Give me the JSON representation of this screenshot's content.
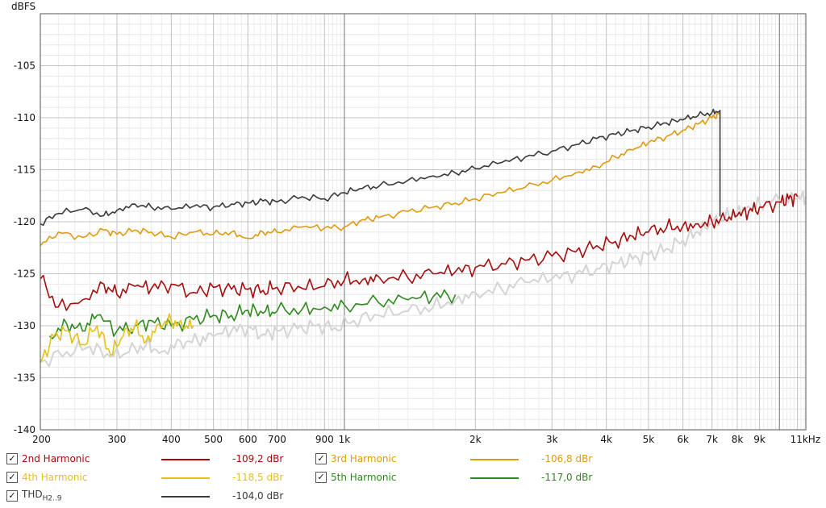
{
  "chart_data": {
    "type": "line",
    "ylabel": "dBFS",
    "x_unit": "kHz",
    "x_scale": "log",
    "xlim": [
      200,
      11500
    ],
    "ylim": [
      -140,
      -100
    ],
    "y_ticks": [
      -105,
      -110,
      -115,
      -120,
      -125,
      -130,
      -135,
      -140
    ],
    "x_ticks": [
      {
        "value": 200,
        "label": "200"
      },
      {
        "value": 300,
        "label": "300"
      },
      {
        "value": 400,
        "label": "400"
      },
      {
        "value": 500,
        "label": "500"
      },
      {
        "value": 600,
        "label": "600"
      },
      {
        "value": 700,
        "label": "700"
      },
      {
        "value": 900,
        "label": "900"
      },
      {
        "value": 1000,
        "label": "1k"
      },
      {
        "value": 2000,
        "label": "2k"
      },
      {
        "value": 3000,
        "label": "3k"
      },
      {
        "value": 4000,
        "label": "4k"
      },
      {
        "value": 5000,
        "label": "5k"
      },
      {
        "value": 6000,
        "label": "6k"
      },
      {
        "value": 7000,
        "label": "7k"
      },
      {
        "value": 8000,
        "label": "8k"
      },
      {
        "value": 9000,
        "label": "9k"
      },
      {
        "value": 11000,
        "label": "11kHz"
      }
    ],
    "grid": true,
    "legend_position": "bottom",
    "series": [
      {
        "key": "thd",
        "name": "THD",
        "name_sub": "H2..9",
        "value": "-104,0 dBr",
        "color": "#3a3a3a",
        "x": [
          200,
          220,
          250,
          280,
          300,
          330,
          360,
          400,
          450,
          500,
          550,
          600,
          650,
          700,
          800,
          900,
          1000,
          1100,
          1200,
          1400,
          1600,
          1800,
          2000,
          2300,
          2600,
          3000,
          3400,
          3800,
          4200,
          4600,
          5000,
          5500,
          6000,
          6500,
          7000,
          7300,
          7300
        ],
        "y": [
          -120.2,
          -119.2,
          -118.8,
          -119.4,
          -118.9,
          -118.3,
          -118.6,
          -118.8,
          -118.5,
          -118.6,
          -118.3,
          -118.2,
          -118.0,
          -118.1,
          -117.6,
          -117.8,
          -117.2,
          -116.8,
          -116.6,
          -116.0,
          -115.6,
          -115.3,
          -114.9,
          -114.3,
          -113.8,
          -113.2,
          -112.6,
          -112.0,
          -111.6,
          -111.2,
          -110.9,
          -110.5,
          -110.2,
          -109.8,
          -109.5,
          -109.3,
          -119.5
        ]
      },
      {
        "key": "h3",
        "name": "3rd Harmonic",
        "value": "-106,8 dBr",
        "color": "#e09a10",
        "x": [
          200,
          220,
          250,
          280,
          300,
          330,
          360,
          400,
          450,
          500,
          550,
          600,
          650,
          700,
          800,
          900,
          1000,
          1100,
          1200,
          1400,
          1600,
          1800,
          2000,
          2300,
          2600,
          3000,
          3400,
          3800,
          4200,
          4600,
          5000,
          5500,
          6000,
          6500,
          7000,
          7300
        ],
        "y": [
          -122.3,
          -121.0,
          -121.5,
          -120.8,
          -121.2,
          -120.8,
          -121.0,
          -121.5,
          -121.0,
          -121.2,
          -121.0,
          -121.6,
          -121.0,
          -121.0,
          -120.5,
          -120.6,
          -120.5,
          -119.8,
          -119.6,
          -119.0,
          -118.6,
          -118.2,
          -117.8,
          -117.2,
          -116.7,
          -116.0,
          -115.3,
          -114.7,
          -113.8,
          -113.1,
          -112.4,
          -111.8,
          -111.2,
          -110.6,
          -110.0,
          -109.6
        ]
      },
      {
        "key": "h2",
        "name": "2nd Harmonic",
        "value": "-109,2 dBr",
        "color": "#a50d0d",
        "x": [
          200,
          220,
          250,
          280,
          300,
          330,
          360,
          400,
          450,
          500,
          550,
          600,
          650,
          700,
          800,
          900,
          1000,
          1100,
          1200,
          1400,
          1600,
          1800,
          2000,
          2300,
          2600,
          3000,
          3400,
          3800,
          4200,
          4600,
          5000,
          5500,
          6000,
          6500,
          7000,
          7500,
          8000,
          8500,
          9000,
          10000,
          10500,
          11000
        ],
        "y": [
          -125.5,
          -128.2,
          -127.5,
          -126.0,
          -127.0,
          -126.2,
          -126.4,
          -126.0,
          -126.8,
          -126.3,
          -126.5,
          -126.5,
          -126.6,
          -126.3,
          -126.4,
          -126.2,
          -125.6,
          -125.6,
          -125.3,
          -125.4,
          -125.0,
          -124.8,
          -124.4,
          -124.0,
          -123.7,
          -123.3,
          -122.9,
          -122.3,
          -121.9,
          -121.4,
          -121.0,
          -120.6,
          -120.4,
          -120.2,
          -120.0,
          -119.8,
          -119.4,
          -119.0,
          -118.6,
          -118.1,
          -117.8,
          -117.6
        ]
      },
      {
        "key": "h4",
        "name": "4th Harmonic",
        "value": "-118,5 dBr",
        "color": "#e4c21e",
        "x": [
          200,
          215,
          230,
          250,
          270,
          290,
          310,
          330,
          350,
          375,
          400,
          425,
          450
        ],
        "y": [
          -133.5,
          -131.0,
          -130.5,
          -131.8,
          -130.0,
          -132.8,
          -131.0,
          -130.0,
          -131.5,
          -129.8,
          -129.5,
          -130.2,
          -130.0
        ]
      },
      {
        "key": "h5",
        "name": "5th Harmonic",
        "value": "-117,0 dBr",
        "color": "#2e8a1e",
        "x": [
          210,
          230,
          250,
          270,
          300,
          330,
          360,
          400,
          450,
          500,
          550,
          600,
          650,
          700,
          800,
          900,
          1000,
          1200,
          1400,
          1600,
          1800
        ],
        "y": [
          -131.0,
          -129.8,
          -130.5,
          -129.0,
          -130.5,
          -130.0,
          -129.5,
          -130.0,
          -129.4,
          -129.0,
          -129.0,
          -128.5,
          -128.8,
          -128.6,
          -128.4,
          -128.2,
          -128.0,
          -127.8,
          -127.5,
          -127.2,
          -127.0
        ]
      },
      {
        "key": "noise",
        "name": "",
        "value": "",
        "color": "#d4d4d4",
        "x": [
          200,
          230,
          260,
          290,
          320,
          350,
          380,
          420,
          460,
          500,
          550,
          600,
          650,
          700,
          780,
          860,
          950,
          1050,
          1200,
          1400,
          1600,
          1800,
          2000,
          2300,
          2600,
          3000,
          3400,
          3800,
          4200,
          4600,
          5000,
          5500,
          6000,
          6500,
          7000,
          7500,
          8000,
          8500,
          9000,
          10000,
          11000,
          11500
        ],
        "y": [
          -133.5,
          -132.5,
          -132.0,
          -133.0,
          -132.5,
          -131.8,
          -132.5,
          -131.5,
          -131.5,
          -131.0,
          -130.5,
          -130.2,
          -130.8,
          -130.5,
          -130.3,
          -130.0,
          -130.2,
          -129.5,
          -129.0,
          -128.6,
          -128.2,
          -127.5,
          -126.8,
          -126.5,
          -125.8,
          -125.5,
          -125.0,
          -124.5,
          -124.0,
          -123.6,
          -123.2,
          -122.6,
          -121.8,
          -121.0,
          -120.2,
          -119.6,
          -119.0,
          -118.5,
          -118.2,
          -118.0,
          -117.8,
          -117.6
        ]
      }
    ]
  },
  "legend": {
    "items": [
      {
        "key": "h2",
        "label": "2nd Harmonic",
        "value": "-109,2 dBr",
        "checked": true,
        "check_glyph": "✓"
      },
      {
        "key": "h3",
        "label": "3rd Harmonic",
        "value": "-106,8 dBr",
        "checked": true,
        "check_glyph": "✓"
      },
      {
        "key": "h4",
        "label": "4th Harmonic",
        "value": "-118,5 dBr",
        "checked": true,
        "check_glyph": "✓"
      },
      {
        "key": "h5",
        "label": "5th Harmonic",
        "value": "-117,0 dBr",
        "checked": true,
        "check_glyph": "✓"
      },
      {
        "key": "thd",
        "label": "THD",
        "label_sub": "H2..9",
        "value": "-104,0 dBr",
        "checked": true,
        "check_glyph": "✓"
      }
    ]
  }
}
